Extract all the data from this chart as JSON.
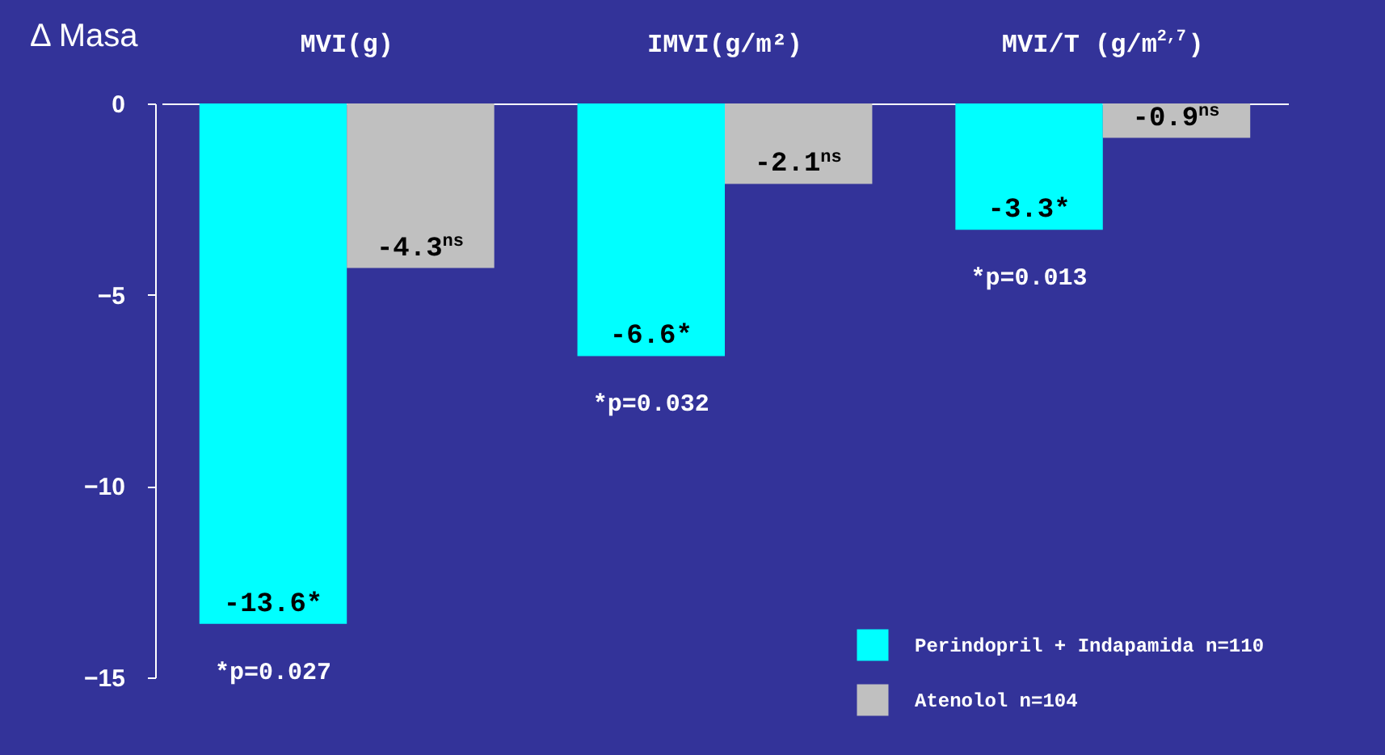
{
  "chart_data": {
    "type": "bar",
    "ylabel": "Δ Masa",
    "categories": [
      "MVI(g)",
      "IMVI(g/m²)",
      "MVI/T (g/m$^{2,7}$)"
    ],
    "series": [
      {
        "name": "Perindopril + Indapamida n=110",
        "color": "#00ffff",
        "values": [
          -13.6,
          -6.6,
          -3.3
        ],
        "value_labels": [
          "-13.6*",
          "-6.6*",
          "-3.3*"
        ]
      },
      {
        "name": "Atenolol n=104",
        "color": "#c0c0c0",
        "values": [
          -4.3,
          -2.1,
          -0.9
        ],
        "value_labels": [
          "-4.3$^{ns}$",
          "-2.1$^{ns}$",
          "-0.9$^{ns}$"
        ]
      }
    ],
    "ylim": [
      -15,
      0
    ],
    "yticks": [
      0,
      -5,
      -10,
      -15
    ],
    "grid": false,
    "legend": "bottom right",
    "annotations": [
      {
        "text": "*p=0.027",
        "x": "MVI(g)",
        "y": -13.6
      },
      {
        "text": "*p=0.032",
        "x": "IMVI(g/m²)",
        "y": -6.6
      },
      {
        "text": "*p=0.013",
        "x": "MVI/T (g/m$^{2,7}$)",
        "y": -3.3
      }
    ]
  }
}
